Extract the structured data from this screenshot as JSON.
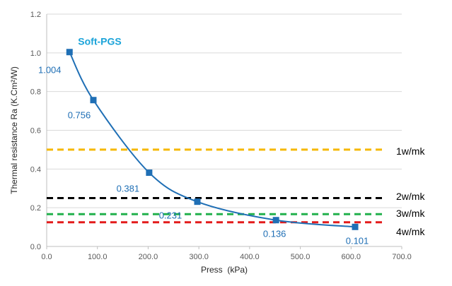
{
  "chart_data": {
    "type": "scatter",
    "title": "",
    "xlabel": "Press  (kPa)",
    "ylabel": "Thermal resistance Ra (K.Cm²/W)",
    "xlim": [
      0,
      700
    ],
    "ylim": [
      0,
      1.2
    ],
    "xticks": [
      "0.0",
      "100.0",
      "200.0",
      "300.0",
      "400.0",
      "500.0",
      "600.0",
      "700.0"
    ],
    "yticks": [
      "0.0",
      "0.2",
      "0.4",
      "0.6",
      "0.8",
      "1.0",
      "1.2"
    ],
    "grid": "horizontal",
    "series": [
      {
        "name": "Soft-PGS",
        "color": "#1f6fb5",
        "label_color": "#1aa3d9",
        "x": [
          45,
          92,
          202,
          297,
          452,
          608
        ],
        "y": [
          1.004,
          0.756,
          0.381,
          0.231,
          0.136,
          0.101
        ],
        "labels": [
          "1.004",
          "0.756",
          "0.381",
          "0.231",
          "0.136",
          "0.101"
        ]
      }
    ],
    "reference_lines": [
      {
        "label": "1w/mk",
        "y": 0.5,
        "color": "#f5b800"
      },
      {
        "label": "2w/mk",
        "y": 0.25,
        "color": "#000000"
      },
      {
        "label": "3w/mk",
        "y": 0.167,
        "color": "#22b14c"
      },
      {
        "label": "4w/mk",
        "y": 0.125,
        "color": "#e31b1b"
      }
    ]
  }
}
